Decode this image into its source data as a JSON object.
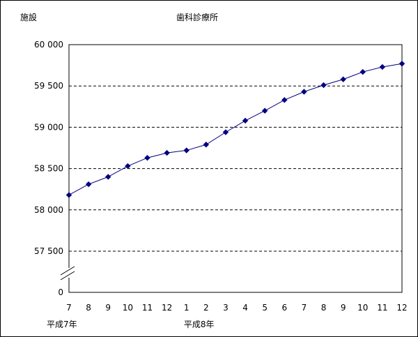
{
  "chart_data": {
    "type": "line",
    "title": "歯科診療所",
    "ylabel": "施設",
    "xlabel": "",
    "categories": [
      "7",
      "8",
      "9",
      "10",
      "11",
      "12",
      "1",
      "2",
      "3",
      "4",
      "5",
      "6",
      "7",
      "8",
      "9",
      "10",
      "11",
      "12"
    ],
    "year_labels": [
      {
        "index": 0,
        "text": "平成7年"
      },
      {
        "index": 7,
        "text": "平成8年"
      }
    ],
    "y_ticks": [
      "0",
      "57 500",
      "58 000",
      "58 500",
      "59 000",
      "59 500",
      "60 000"
    ],
    "ylim": [
      57500,
      60000
    ],
    "axis_break": true,
    "grid": "dashed horizontal",
    "series": [
      {
        "values": [
          58180,
          58310,
          58400,
          58530,
          58630,
          58690,
          58720,
          58790,
          58940,
          59080,
          59200,
          59330,
          59430,
          59510,
          59580,
          59670,
          59730,
          59770
        ],
        "color": "#000080"
      }
    ]
  }
}
